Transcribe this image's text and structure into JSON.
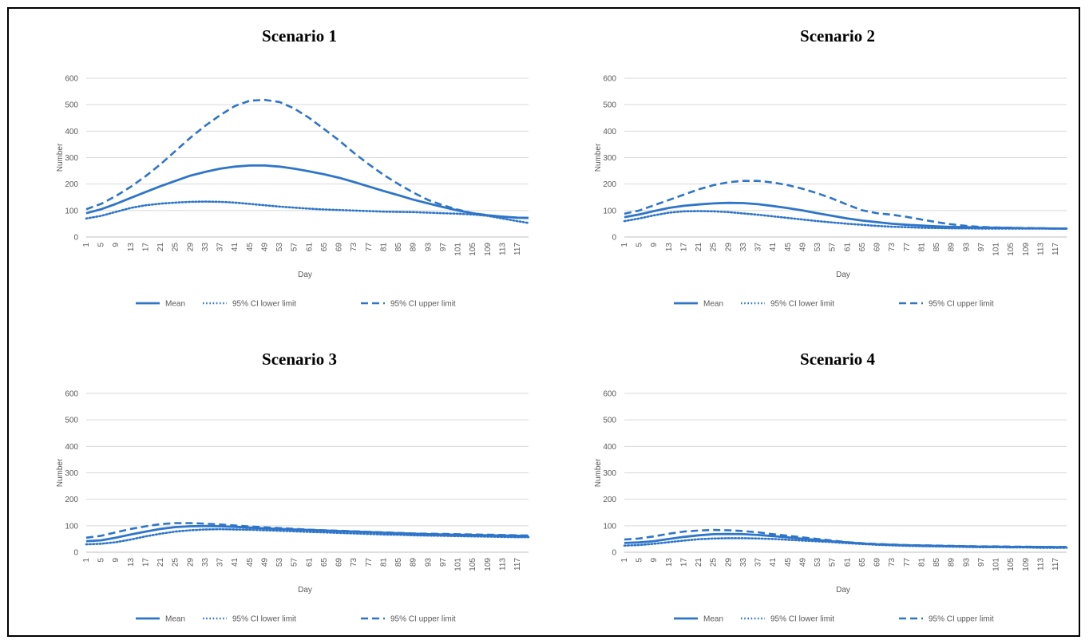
{
  "colors": {
    "series": "#2e75c9"
  },
  "chart_data": [
    {
      "type": "line",
      "title": "Scenario 1",
      "xlabel": "Day",
      "ylabel": "Number",
      "ylim": [
        0,
        600
      ],
      "yticks": [
        "0",
        "100",
        "200",
        "300",
        "400",
        "500",
        "600"
      ],
      "xticks": [
        "1",
        "5",
        "9",
        "13",
        "17",
        "21",
        "25",
        "29",
        "33",
        "37",
        "41",
        "45",
        "49",
        "53",
        "57",
        "61",
        "65",
        "69",
        "73",
        "77",
        "81",
        "85",
        "89",
        "93",
        "97",
        "101",
        "105",
        "109",
        "113",
        "117"
      ],
      "xrange": [
        1,
        120
      ],
      "grid": true,
      "legend": "bottom",
      "series": [
        {
          "name": "Mean",
          "style": "solid",
          "x": [
            1,
            5,
            9,
            13,
            17,
            21,
            25,
            29,
            33,
            37,
            41,
            45,
            49,
            53,
            57,
            61,
            65,
            69,
            73,
            77,
            81,
            85,
            89,
            93,
            97,
            101,
            105,
            109,
            113,
            117,
            120
          ],
          "y": [
            90,
            105,
            125,
            148,
            170,
            192,
            212,
            232,
            246,
            258,
            266,
            270,
            270,
            266,
            258,
            248,
            237,
            224,
            208,
            191,
            174,
            158,
            141,
            127,
            113,
            100,
            90,
            82,
            77,
            73,
            72
          ]
        },
        {
          "name": "95% CI lower limit",
          "style": "dotted",
          "x": [
            1,
            5,
            9,
            13,
            17,
            21,
            25,
            29,
            33,
            37,
            41,
            45,
            49,
            53,
            57,
            61,
            65,
            69,
            73,
            77,
            81,
            85,
            89,
            93,
            97,
            101,
            105,
            109,
            113,
            117,
            120
          ],
          "y": [
            70,
            80,
            95,
            110,
            120,
            126,
            130,
            133,
            134,
            133,
            130,
            125,
            120,
            115,
            111,
            107,
            104,
            102,
            100,
            98,
            96,
            95,
            94,
            92,
            90,
            88,
            85,
            80,
            70,
            60,
            53
          ]
        },
        {
          "name": "95% CI upper limit",
          "style": "dashed",
          "x": [
            1,
            5,
            9,
            13,
            17,
            21,
            25,
            29,
            33,
            37,
            41,
            45,
            49,
            53,
            57,
            61,
            65,
            69,
            73,
            77,
            81,
            85,
            89,
            93,
            97,
            101,
            105,
            109,
            113,
            117,
            120
          ],
          "y": [
            105,
            125,
            155,
            190,
            230,
            275,
            325,
            375,
            420,
            460,
            495,
            515,
            518,
            510,
            485,
            450,
            408,
            365,
            318,
            275,
            235,
            200,
            168,
            140,
            120,
            103,
            90,
            82,
            77,
            73,
            72
          ]
        }
      ]
    },
    {
      "type": "line",
      "title": "Scenario 2",
      "xlabel": "Day",
      "ylabel": "Number",
      "ylim": [
        0,
        600
      ],
      "yticks": [
        "0",
        "100",
        "200",
        "300",
        "400",
        "500",
        "600"
      ],
      "xticks": [
        "1",
        "5",
        "9",
        "13",
        "17",
        "21",
        "25",
        "29",
        "33",
        "37",
        "41",
        "45",
        "49",
        "53",
        "57",
        "61",
        "65",
        "69",
        "73",
        "77",
        "81",
        "85",
        "89",
        "93",
        "97",
        "101",
        "105",
        "109",
        "113",
        "117"
      ],
      "xrange": [
        1,
        120
      ],
      "grid": true,
      "legend": "bottom",
      "series": [
        {
          "name": "Mean",
          "style": "solid",
          "x": [
            1,
            5,
            9,
            13,
            17,
            21,
            25,
            29,
            33,
            37,
            41,
            45,
            49,
            53,
            57,
            61,
            65,
            69,
            73,
            77,
            81,
            85,
            89,
            93,
            97,
            101,
            105,
            109,
            113,
            117,
            120
          ],
          "y": [
            75,
            85,
            98,
            110,
            118,
            123,
            127,
            129,
            128,
            124,
            117,
            109,
            100,
            90,
            80,
            70,
            62,
            56,
            50,
            46,
            43,
            40,
            38,
            37,
            36,
            35,
            34,
            33,
            33,
            32,
            32
          ]
        },
        {
          "name": "95% CI lower limit",
          "style": "dotted",
          "x": [
            1,
            5,
            9,
            13,
            17,
            21,
            25,
            29,
            33,
            37,
            41,
            45,
            49,
            53,
            57,
            61,
            65,
            69,
            73,
            77,
            81,
            85,
            89,
            93,
            97,
            101,
            105,
            109,
            113,
            117,
            120
          ],
          "y": [
            60,
            70,
            82,
            92,
            97,
            98,
            97,
            94,
            89,
            84,
            78,
            72,
            66,
            60,
            55,
            50,
            46,
            42,
            39,
            37,
            35,
            34,
            33,
            33,
            32,
            32,
            32,
            32,
            32,
            32,
            32
          ]
        },
        {
          "name": "95% CI upper limit",
          "style": "dashed",
          "x": [
            1,
            5,
            9,
            13,
            17,
            21,
            25,
            29,
            33,
            37,
            41,
            45,
            49,
            53,
            57,
            61,
            65,
            69,
            73,
            77,
            81,
            85,
            89,
            93,
            97,
            101,
            105,
            109,
            113,
            117,
            120
          ],
          "y": [
            88,
            100,
            120,
            140,
            160,
            180,
            196,
            207,
            212,
            212,
            206,
            196,
            182,
            165,
            145,
            122,
            101,
            90,
            84,
            76,
            66,
            56,
            48,
            42,
            38,
            36,
            35,
            34,
            33,
            32,
            32
          ]
        }
      ]
    },
    {
      "type": "line",
      "title": "Scenario 3",
      "xlabel": "Day",
      "ylabel": "Number",
      "ylim": [
        0,
        600
      ],
      "yticks": [
        "0",
        "100",
        "200",
        "300",
        "400",
        "500",
        "600"
      ],
      "xticks": [
        "1",
        "5",
        "9",
        "13",
        "17",
        "21",
        "25",
        "29",
        "33",
        "37",
        "41",
        "45",
        "49",
        "53",
        "57",
        "61",
        "65",
        "69",
        "73",
        "77",
        "81",
        "85",
        "89",
        "93",
        "97",
        "101",
        "105",
        "109",
        "113",
        "117"
      ],
      "xrange": [
        1,
        120
      ],
      "grid": true,
      "legend": "bottom",
      "series": [
        {
          "name": "Mean",
          "style": "solid",
          "x": [
            1,
            5,
            9,
            13,
            17,
            21,
            25,
            29,
            33,
            37,
            41,
            45,
            49,
            53,
            57,
            61,
            65,
            69,
            73,
            77,
            81,
            85,
            89,
            93,
            97,
            101,
            105,
            109,
            113,
            117,
            120
          ],
          "y": [
            42,
            45,
            55,
            67,
            78,
            88,
            95,
            98,
            99,
            98,
            96,
            93,
            90,
            88,
            86,
            84,
            82,
            80,
            78,
            76,
            74,
            72,
            70,
            68,
            67,
            66,
            65,
            64,
            63,
            62,
            61
          ]
        },
        {
          "name": "95% CI lower limit",
          "style": "dotted",
          "x": [
            1,
            5,
            9,
            13,
            17,
            21,
            25,
            29,
            33,
            37,
            41,
            45,
            49,
            53,
            57,
            61,
            65,
            69,
            73,
            77,
            81,
            85,
            89,
            93,
            97,
            101,
            105,
            109,
            113,
            117,
            120
          ],
          "y": [
            30,
            32,
            38,
            48,
            60,
            70,
            78,
            83,
            86,
            87,
            86,
            85,
            83,
            81,
            79,
            77,
            75,
            73,
            71,
            69,
            67,
            66,
            64,
            63,
            62,
            61,
            60,
            59,
            58,
            57,
            57
          ]
        },
        {
          "name": "95% CI upper limit",
          "style": "dashed",
          "x": [
            1,
            5,
            9,
            13,
            17,
            21,
            25,
            29,
            33,
            37,
            41,
            45,
            49,
            53,
            57,
            61,
            65,
            69,
            73,
            77,
            81,
            85,
            89,
            93,
            97,
            101,
            105,
            109,
            113,
            117,
            120
          ],
          "y": [
            55,
            62,
            75,
            88,
            98,
            106,
            110,
            110,
            108,
            105,
            101,
            97,
            94,
            91,
            88,
            85,
            83,
            81,
            79,
            77,
            75,
            73,
            71,
            70,
            69,
            68,
            67,
            66,
            65,
            64,
            63
          ]
        }
      ]
    },
    {
      "type": "line",
      "title": "Scenario 4",
      "xlabel": "Day",
      "ylabel": "Number",
      "ylim": [
        0,
        600
      ],
      "yticks": [
        "0",
        "100",
        "200",
        "300",
        "400",
        "500",
        "600"
      ],
      "xticks": [
        "1",
        "5",
        "9",
        "13",
        "17",
        "21",
        "25",
        "29",
        "33",
        "37",
        "41",
        "45",
        "49",
        "53",
        "57",
        "61",
        "65",
        "69",
        "73",
        "77",
        "81",
        "85",
        "89",
        "93",
        "97",
        "101",
        "105",
        "109",
        "113",
        "117"
      ],
      "xrange": [
        1,
        120
      ],
      "grid": true,
      "legend": "bottom",
      "series": [
        {
          "name": "Mean",
          "style": "solid",
          "x": [
            1,
            5,
            9,
            13,
            17,
            21,
            25,
            29,
            33,
            37,
            41,
            45,
            49,
            53,
            57,
            61,
            65,
            69,
            73,
            77,
            81,
            85,
            89,
            93,
            97,
            101,
            105,
            109,
            113,
            117,
            120
          ],
          "y": [
            35,
            37,
            42,
            50,
            58,
            64,
            68,
            69,
            68,
            65,
            61,
            56,
            51,
            46,
            41,
            37,
            33,
            30,
            28,
            26,
            25,
            24,
            23,
            22,
            21,
            21,
            20,
            20,
            20,
            19,
            19
          ]
        },
        {
          "name": "95% CI lower limit",
          "style": "dotted",
          "x": [
            1,
            5,
            9,
            13,
            17,
            21,
            25,
            29,
            33,
            37,
            41,
            45,
            49,
            53,
            57,
            61,
            65,
            69,
            73,
            77,
            81,
            85,
            89,
            93,
            97,
            101,
            105,
            109,
            113,
            117,
            120
          ],
          "y": [
            25,
            27,
            32,
            38,
            44,
            49,
            52,
            53,
            53,
            52,
            50,
            47,
            44,
            41,
            38,
            34,
            31,
            28,
            26,
            24,
            23,
            22,
            21,
            20,
            19,
            19,
            18,
            18,
            17,
            17,
            17
          ]
        },
        {
          "name": "95% CI upper limit",
          "style": "dashed",
          "x": [
            1,
            5,
            9,
            13,
            17,
            21,
            25,
            29,
            33,
            37,
            41,
            45,
            49,
            53,
            57,
            61,
            65,
            69,
            73,
            77,
            81,
            85,
            89,
            93,
            97,
            101,
            105,
            109,
            113,
            117,
            120
          ],
          "y": [
            48,
            52,
            60,
            70,
            78,
            82,
            84,
            83,
            80,
            75,
            68,
            62,
            56,
            50,
            44,
            38,
            34,
            31,
            29,
            27,
            26,
            25,
            24,
            23,
            22,
            22,
            21,
            21,
            20,
            20,
            20
          ]
        }
      ]
    }
  ]
}
